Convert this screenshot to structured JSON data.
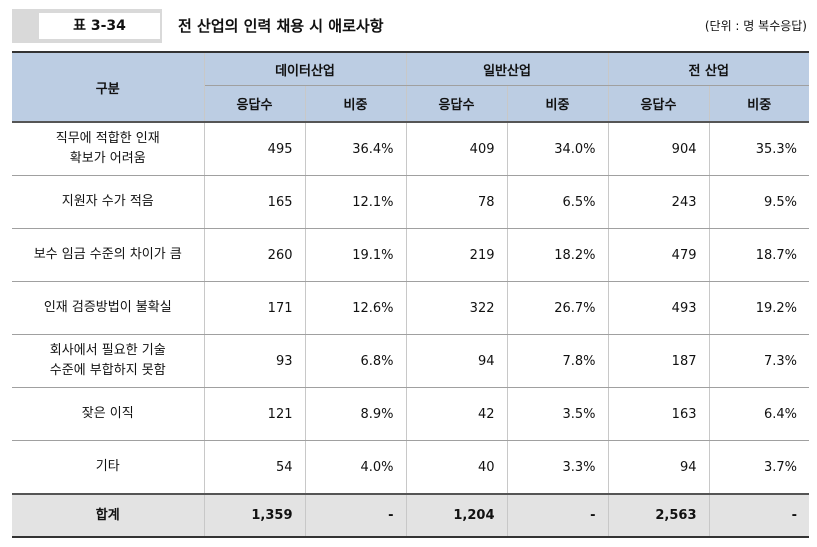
{
  "caption": {
    "label": "표 3-34",
    "title": "전 산업의 인력 채용 시 애로사항",
    "unit": "(단위 : 명 복수응답)"
  },
  "table": {
    "header": {
      "category": "구분",
      "groups": [
        "데이터산업",
        "일반산업",
        "전 산업"
      ],
      "sub": [
        "응답수",
        "비중"
      ]
    },
    "rows": [
      {
        "category_lines": [
          "직무에 적합한 인재",
          "확보가 어려움"
        ],
        "values": [
          "495",
          "36.4%",
          "409",
          "34.0%",
          "904",
          "35.3%"
        ]
      },
      {
        "category_lines": [
          "지원자 수가 적음"
        ],
        "values": [
          "165",
          "12.1%",
          "78",
          "6.5%",
          "243",
          "9.5%"
        ]
      },
      {
        "category_lines": [
          "보수 임금 수준의 차이가 큼"
        ],
        "values": [
          "260",
          "19.1%",
          "219",
          "18.2%",
          "479",
          "18.7%"
        ]
      },
      {
        "category_lines": [
          "인재 검증방법이 불확실"
        ],
        "values": [
          "171",
          "12.6%",
          "322",
          "26.7%",
          "493",
          "19.2%"
        ]
      },
      {
        "category_lines": [
          "회사에서 필요한 기술",
          "수준에 부합하지 못함"
        ],
        "values": [
          "93",
          "6.8%",
          "94",
          "7.8%",
          "187",
          "7.3%"
        ]
      },
      {
        "category_lines": [
          "잦은 이직"
        ],
        "values": [
          "121",
          "8.9%",
          "42",
          "3.5%",
          "163",
          "6.4%"
        ]
      },
      {
        "category_lines": [
          "기타"
        ],
        "values": [
          "54",
          "4.0%",
          "40",
          "3.3%",
          "94",
          "3.7%"
        ]
      }
    ],
    "total": {
      "category": "합계",
      "values": [
        "1,359",
        "-",
        "1,204",
        "-",
        "2,563",
        "-"
      ]
    }
  }
}
